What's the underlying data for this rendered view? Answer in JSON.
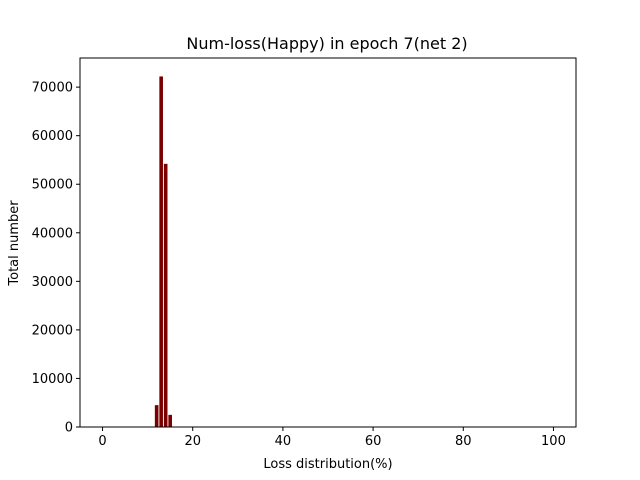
{
  "chart_data": {
    "type": "bar",
    "title": "Num-loss(Happy) in epoch 7(net 2)",
    "xlabel": "Loss distribution(%)",
    "ylabel": "Total number",
    "xlim": [
      -5,
      105
    ],
    "ylim": [
      0,
      76000
    ],
    "xticks": [
      0,
      20,
      40,
      60,
      80,
      100
    ],
    "yticks": [
      0,
      10000,
      20000,
      30000,
      40000,
      50000,
      60000,
      70000
    ],
    "bar_width": 0.8,
    "bar_color": "#7a0000",
    "x": [
      12,
      13,
      14,
      15
    ],
    "values": [
      4500,
      72200,
      54200,
      2500
    ]
  }
}
